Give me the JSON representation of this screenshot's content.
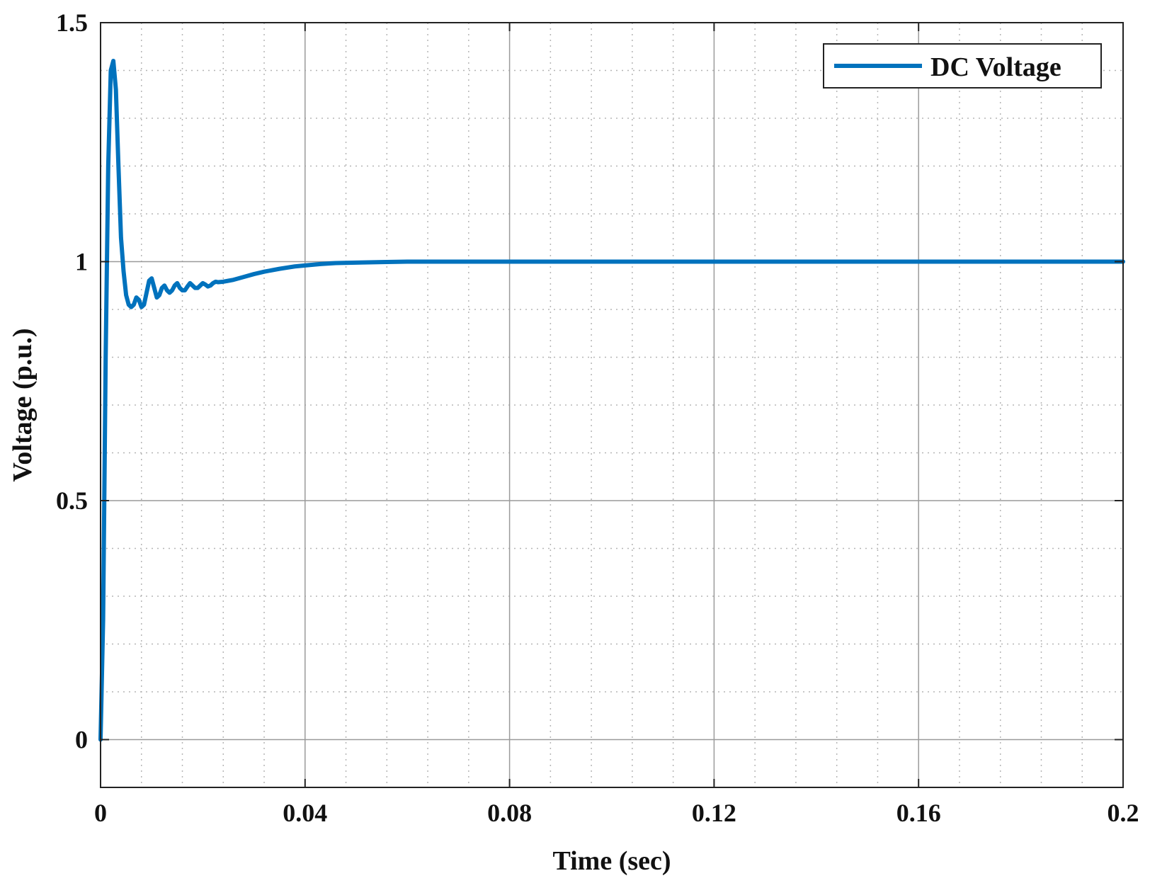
{
  "chart_data": {
    "type": "line",
    "title": "",
    "xlabel": "Time (sec)",
    "ylabel": "Voltage (p.u.)",
    "xlim": [
      0,
      0.2
    ],
    "ylim": [
      -0.1,
      1.5
    ],
    "xticks": [
      0,
      0.04,
      0.08,
      0.12,
      0.16,
      0.2
    ],
    "xtick_labels": [
      "0",
      "0.04",
      "0.08",
      "0.12",
      "0.16",
      "0.2"
    ],
    "yticks": [
      0,
      0.5,
      1,
      1.5
    ],
    "ytick_labels": [
      "0",
      "0.5",
      "1",
      "1.5"
    ],
    "grid": true,
    "minor_grid": true,
    "legend_position": "top-right",
    "series": [
      {
        "name": "DC Voltage",
        "color": "#0072BD",
        "x": [
          0,
          0.0005,
          0.001,
          0.0015,
          0.002,
          0.0025,
          0.003,
          0.0035,
          0.004,
          0.0045,
          0.005,
          0.0055,
          0.006,
          0.0065,
          0.007,
          0.0075,
          0.008,
          0.0085,
          0.009,
          0.0095,
          0.01,
          0.0105,
          0.011,
          0.0115,
          0.012,
          0.0125,
          0.013,
          0.0135,
          0.014,
          0.0145,
          0.015,
          0.0155,
          0.016,
          0.0165,
          0.017,
          0.0175,
          0.018,
          0.0185,
          0.019,
          0.0195,
          0.02,
          0.0205,
          0.021,
          0.0215,
          0.022,
          0.0225,
          0.023,
          0.024,
          0.025,
          0.026,
          0.028,
          0.03,
          0.032,
          0.035,
          0.038,
          0.04,
          0.043,
          0.046,
          0.05,
          0.055,
          0.06,
          0.065,
          0.07,
          0.08,
          0.1,
          0.12,
          0.14,
          0.16,
          0.18,
          0.2
        ],
        "y": [
          0,
          0.25,
          0.8,
          1.2,
          1.4,
          1.42,
          1.36,
          1.2,
          1.05,
          0.98,
          0.93,
          0.91,
          0.905,
          0.91,
          0.925,
          0.92,
          0.905,
          0.91,
          0.935,
          0.96,
          0.965,
          0.945,
          0.925,
          0.93,
          0.945,
          0.95,
          0.94,
          0.935,
          0.94,
          0.95,
          0.955,
          0.945,
          0.94,
          0.94,
          0.948,
          0.955,
          0.95,
          0.945,
          0.945,
          0.95,
          0.955,
          0.952,
          0.948,
          0.95,
          0.955,
          0.958,
          0.957,
          0.958,
          0.96,
          0.962,
          0.968,
          0.974,
          0.979,
          0.985,
          0.99,
          0.992,
          0.995,
          0.997,
          0.998,
          0.999,
          1.0,
          1.0,
          1.0,
          1.0,
          1.0,
          1.0,
          1.0,
          1.0,
          1.0,
          1.0
        ]
      }
    ]
  }
}
